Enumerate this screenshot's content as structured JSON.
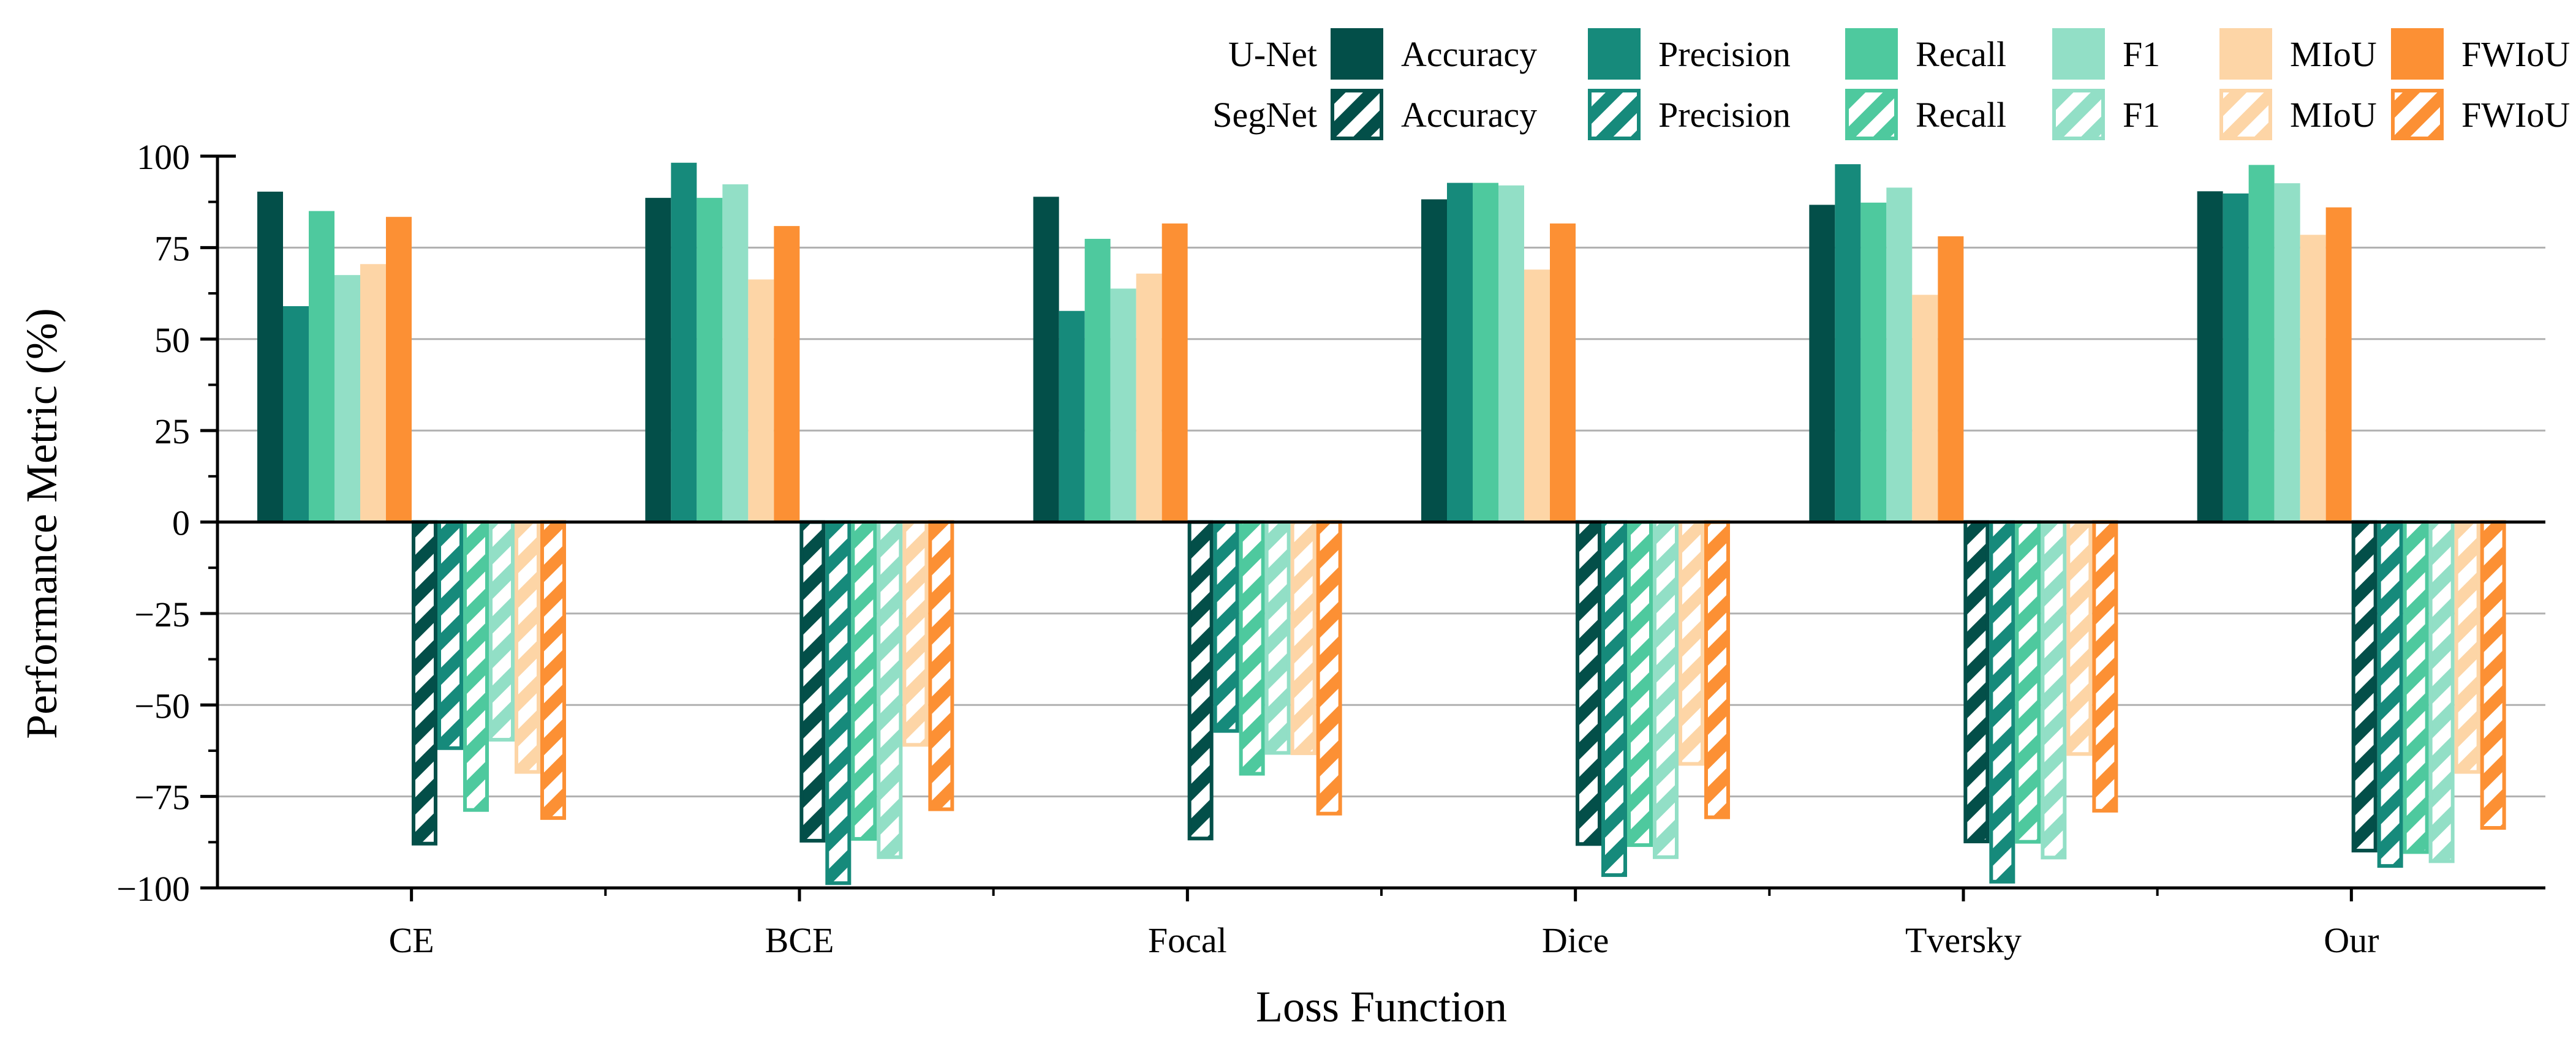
{
  "chart_data": {
    "type": "bar",
    "xlabel": "Loss Function",
    "ylabel": "Performance Metric (%)",
    "ylim": [
      -100,
      100
    ],
    "yticks": [
      100,
      75,
      50,
      25,
      0,
      -25,
      -50,
      -75,
      -100
    ],
    "ytick_labels": [
      "100",
      "75",
      "50",
      "25",
      "0",
      "−25",
      "−50",
      "−75",
      "−100"
    ],
    "grid": true,
    "legend_position": "top-right",
    "categories": [
      "CE",
      "BCE",
      "Focal",
      "Dice",
      "Tversky",
      "Our"
    ],
    "metrics": [
      "Accuracy",
      "Precision",
      "Recall",
      "F1",
      "MIoU",
      "FWIoU"
    ],
    "colors": {
      "Accuracy": "#034f49",
      "Precision": "#168a7b",
      "Recall": "#4ec99e",
      "F1": "#92dfc6",
      "MIoU": "#fdd5a6",
      "FWIoU": "#fc9034"
    },
    "models": [
      {
        "name": "U-Net",
        "style": "solid",
        "series": [
          {
            "name": "Accuracy",
            "values": [
              90.3,
              88.6,
              88.9,
              88.2,
              86.7,
              90.4
            ]
          },
          {
            "name": "Precision",
            "values": [
              59.0,
              98.2,
              57.7,
              92.7,
              97.8,
              89.8
            ]
          },
          {
            "name": "Recall",
            "values": [
              85.0,
              88.6,
              77.4,
              92.7,
              87.3,
              97.6
            ]
          },
          {
            "name": "F1",
            "values": [
              67.5,
              92.3,
              63.8,
              92.0,
              91.4,
              92.6
            ]
          },
          {
            "name": "MIoU",
            "values": [
              70.5,
              66.3,
              67.9,
              69.0,
              62.1,
              78.5
            ]
          },
          {
            "name": "FWIoU",
            "values": [
              83.4,
              80.9,
              81.6,
              81.6,
              78.1,
              86.0
            ]
          }
        ]
      },
      {
        "name": "SegNet",
        "style": "hatched",
        "series": [
          {
            "name": "Accuracy",
            "values": [
              -88.4,
              -87.6,
              -87.0,
              -88.5,
              -87.8,
              -90.3
            ]
          },
          {
            "name": "Precision",
            "values": [
              -62.3,
              -99.2,
              -57.6,
              -97.0,
              -98.8,
              -94.5
            ]
          },
          {
            "name": "Recall",
            "values": [
              -79.2,
              -87.1,
              -69.3,
              -88.8,
              -87.9,
              -90.7
            ]
          },
          {
            "name": "F1",
            "values": [
              -60.0,
              -92.1,
              -63.6,
              -92.1,
              -92.2,
              -93.2
            ]
          },
          {
            "name": "MIoU",
            "values": [
              -68.8,
              -61.4,
              -63.7,
              -66.6,
              -63.9,
              -68.8
            ]
          },
          {
            "name": "FWIoU",
            "values": [
              -81.4,
              -79.0,
              -80.2,
              -81.2,
              -79.4,
              -84.1
            ]
          }
        ]
      }
    ]
  }
}
